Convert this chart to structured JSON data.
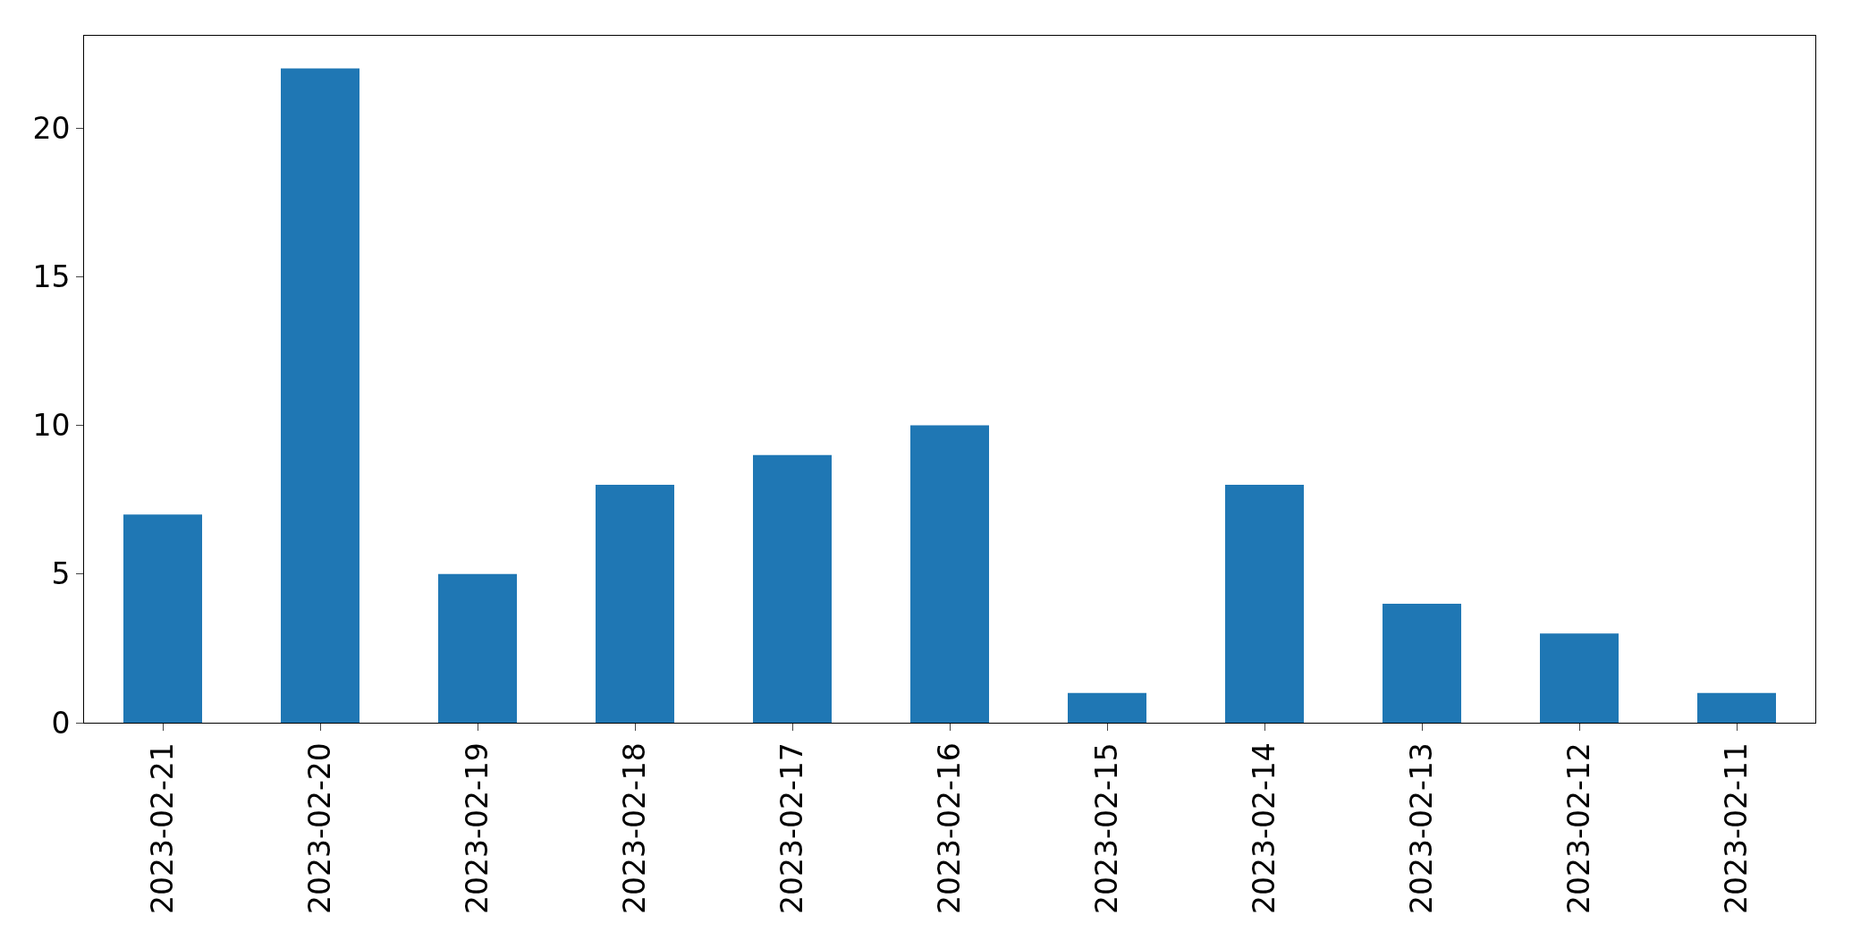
{
  "chart_data": {
    "type": "bar",
    "categories": [
      "2023-02-21",
      "2023-02-20",
      "2023-02-19",
      "2023-02-18",
      "2023-02-17",
      "2023-02-16",
      "2023-02-15",
      "2023-02-14",
      "2023-02-13",
      "2023-02-12",
      "2023-02-11"
    ],
    "values": [
      7,
      22,
      5,
      8,
      9,
      10,
      1,
      8,
      4,
      3,
      1
    ],
    "color": "#1f77b4",
    "ylim": [
      0,
      23.1
    ],
    "yticks": [
      0,
      5,
      10,
      15,
      20
    ]
  }
}
